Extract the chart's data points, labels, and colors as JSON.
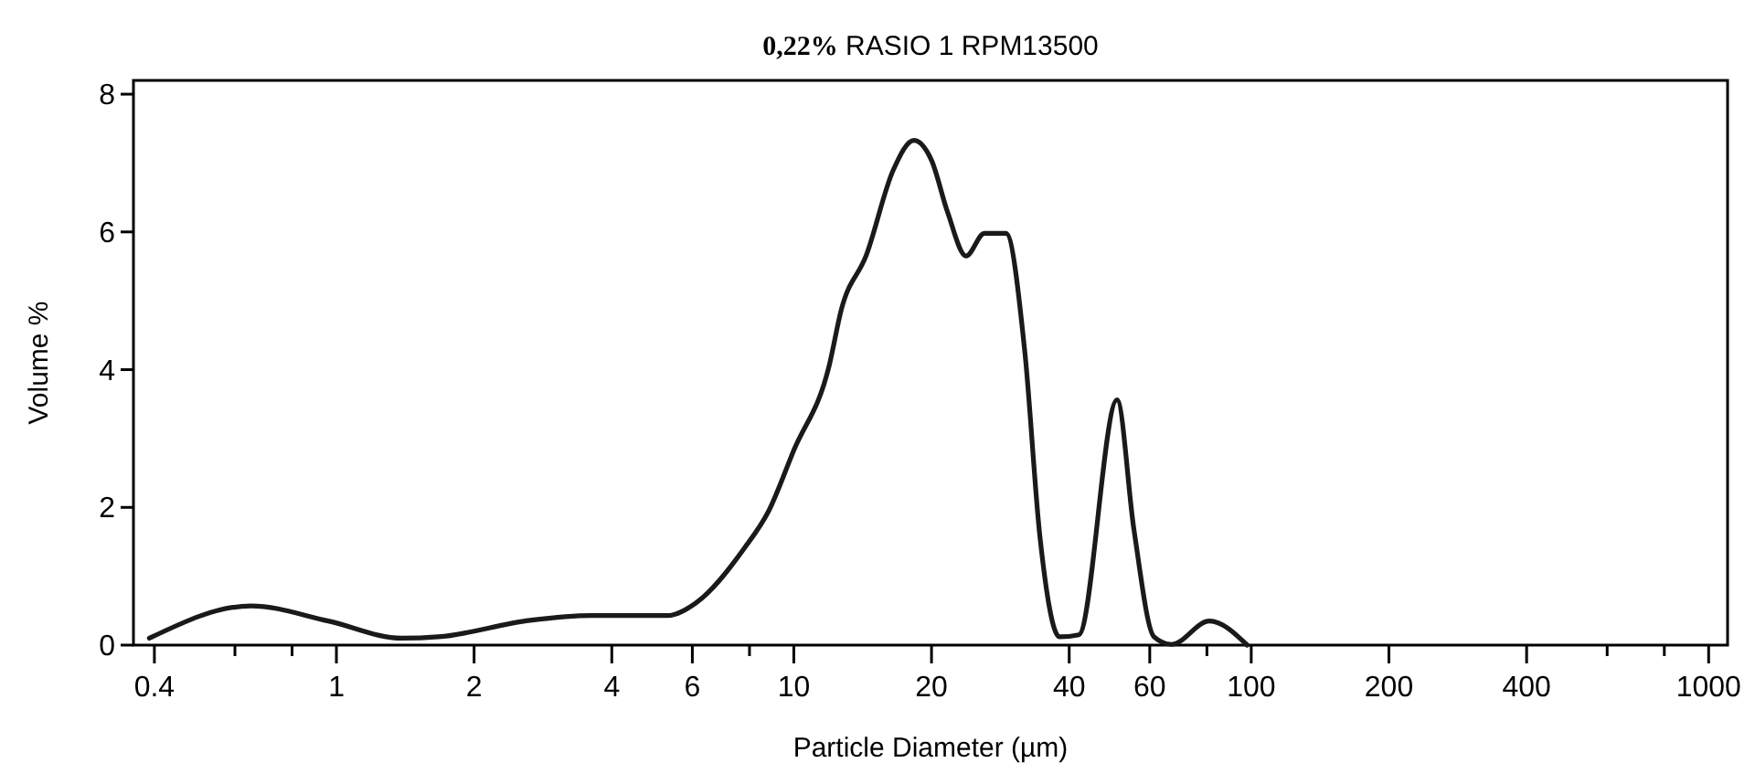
{
  "chart_data": {
    "type": "line",
    "title": "0,22% RASIO 1 RPM13500",
    "xlabel": "Particle Diameter (µm)",
    "ylabel": "Volume %",
    "log": "x",
    "xlim": [
      0.36,
      1100
    ],
    "ylim": [
      0,
      8.2
    ],
    "xticks": [
      0.4,
      {
        "value": 0.6,
        "label": null
      },
      {
        "value": 0.8,
        "label": null
      },
      1,
      2,
      4,
      6,
      {
        "value": 8,
        "label": null
      },
      10,
      20,
      40,
      60,
      {
        "value": 80,
        "label": null
      },
      100,
      200,
      400,
      {
        "value": 600,
        "label": null
      },
      {
        "value": 800,
        "label": null
      },
      1000
    ],
    "yticks": [
      0,
      2,
      4,
      6,
      8
    ],
    "grid": false,
    "marker": "none",
    "line_style": "solid",
    "series": [
      {
        "color": "#1a1a1a",
        "x": [
          0.39,
          0.65,
          0.96,
          1.39,
          1.67,
          2.65,
          3.6,
          5.3,
          6.1,
          7.8,
          8.8,
          10,
          11.96,
          12.7,
          14.4,
          16.5,
          18.3,
          20.0,
          21.7,
          23.8,
          26.1,
          29.1,
          32,
          34.5,
          38.1,
          42,
          50.9,
          55.4,
          61.3,
          67,
          81,
          98
        ],
        "values": [
          0.1,
          0.57,
          0.35,
          0.1,
          0.12,
          0.36,
          0.43,
          0.43,
          0.61,
          1.41,
          1.94,
          2.83,
          4.07,
          4.87,
          5.66,
          6.9,
          7.33,
          7.04,
          6.28,
          5.65,
          5.98,
          5.98,
          4.25,
          1.59,
          0.12,
          0.15,
          3.56,
          1.68,
          0.12,
          0.01,
          0.35,
          0
        ]
      }
    ]
  }
}
